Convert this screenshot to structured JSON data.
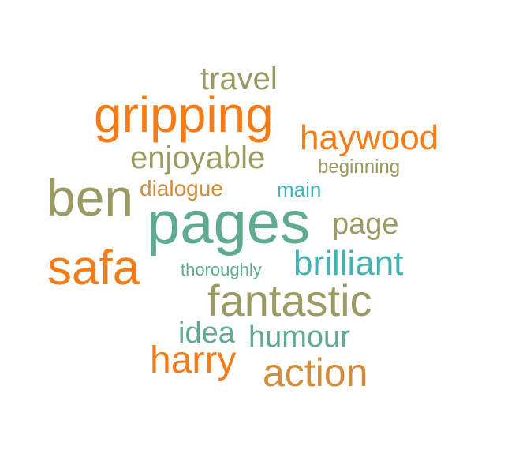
{
  "word_cloud": {
    "words": [
      {
        "key": "travel",
        "text": "travel",
        "color": "#9a9a62"
      },
      {
        "key": "gripping",
        "text": "gripping",
        "color": "#f47b16"
      },
      {
        "key": "haywood",
        "text": "haywood",
        "color": "#f47b16"
      },
      {
        "key": "enjoyable",
        "text": "enjoyable",
        "color": "#9a9a62"
      },
      {
        "key": "beginning",
        "text": "beginning",
        "color": "#9a9a62"
      },
      {
        "key": "ben",
        "text": "ben",
        "color": "#9a9a62"
      },
      {
        "key": "dialogue",
        "text": "dialogue",
        "color": "#d28c3a"
      },
      {
        "key": "main",
        "text": "main",
        "color": "#40b4b4"
      },
      {
        "key": "pages",
        "text": "pages",
        "color": "#5fab8e"
      },
      {
        "key": "page",
        "text": "page",
        "color": "#9a9a62"
      },
      {
        "key": "safa",
        "text": "safa",
        "color": "#f47b16"
      },
      {
        "key": "brilliant",
        "text": "brilliant",
        "color": "#40b4b4"
      },
      {
        "key": "thoroughly",
        "text": "thoroughly",
        "color": "#5fab8e"
      },
      {
        "key": "fantastic",
        "text": "fantastic",
        "color": "#9a9a62"
      },
      {
        "key": "idea",
        "text": "idea",
        "color": "#5fab8e"
      },
      {
        "key": "humour",
        "text": "humour",
        "color": "#5fab8e"
      },
      {
        "key": "harry",
        "text": "harry",
        "color": "#f47b16"
      },
      {
        "key": "action",
        "text": "action",
        "color": "#d28c3a"
      }
    ]
  }
}
